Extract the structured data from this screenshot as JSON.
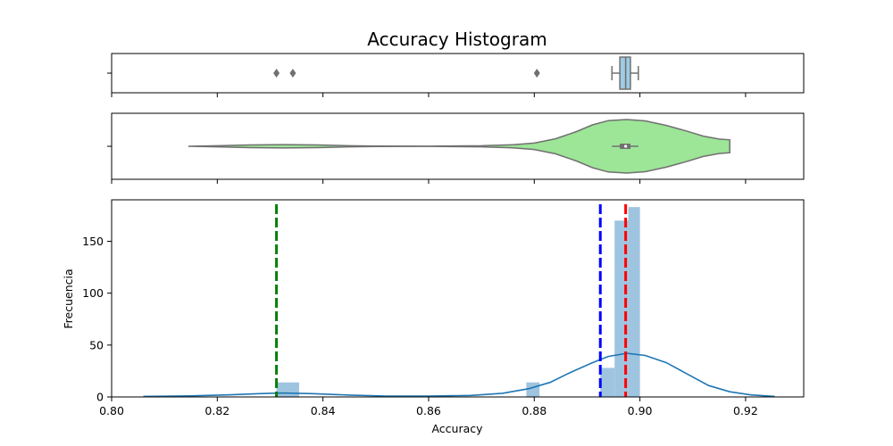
{
  "chart_data": {
    "title": "Accuracy Histogram",
    "colors": {
      "box_fill": "#9fcbe4",
      "violin_fill": "#9de597",
      "hist_bar": "#9fc4e0",
      "kde_line": "#1f77b4",
      "mean_line": "#0000ff",
      "median_line": "#ff0000",
      "mode_line": "#008000",
      "outline": "#707070"
    },
    "x_axis": {
      "label": "Accuracy",
      "ticks": [
        0.8,
        0.82,
        0.84,
        0.86,
        0.88,
        0.9,
        0.92
      ],
      "tick_labels": [
        "0.80",
        "0.82",
        "0.84",
        "0.86",
        "0.88",
        "0.90",
        "0.92"
      ],
      "range": [
        0.8,
        0.931
      ]
    },
    "boxplot": {
      "type": "box",
      "whisker_low": 0.8947,
      "q1": 0.8962,
      "median": 0.8973,
      "q3": 0.8982,
      "whisker_high": 0.8997,
      "outliers": [
        0.8312,
        0.8343,
        0.8805
      ]
    },
    "violin": {
      "type": "violin",
      "range": [
        0.8145,
        0.917
      ],
      "density": [
        [
          0.8145,
          0.0
        ],
        [
          0.82,
          0.02
        ],
        [
          0.826,
          0.05
        ],
        [
          0.8325,
          0.065
        ],
        [
          0.839,
          0.05
        ],
        [
          0.845,
          0.02
        ],
        [
          0.85,
          0.006
        ],
        [
          0.86,
          0.003
        ],
        [
          0.87,
          0.02
        ],
        [
          0.876,
          0.06
        ],
        [
          0.88,
          0.12
        ],
        [
          0.884,
          0.28
        ],
        [
          0.888,
          0.55
        ],
        [
          0.891,
          0.8
        ],
        [
          0.894,
          0.96
        ],
        [
          0.8975,
          1.0
        ],
        [
          0.901,
          0.95
        ],
        [
          0.905,
          0.78
        ],
        [
          0.909,
          0.56
        ],
        [
          0.912,
          0.38
        ],
        [
          0.915,
          0.27
        ],
        [
          0.917,
          0.24
        ]
      ],
      "inner_box": {
        "q1": 0.8962,
        "q3": 0.8982,
        "median": 0.8973,
        "whisker_low": 0.8947,
        "whisker_high": 0.8997
      }
    },
    "histogram": {
      "type": "bar",
      "ylabel": "Frecuencia",
      "y_ticks": [
        0,
        50,
        100,
        150
      ],
      "y_tick_labels": [
        "0",
        "50",
        "100",
        "150"
      ],
      "ylim": [
        0,
        190
      ],
      "bins": [
        {
          "x0": 0.8312,
          "x1": 0.8355,
          "count": 14
        },
        {
          "x0": 0.8785,
          "x1": 0.881,
          "count": 14
        },
        {
          "x0": 0.8925,
          "x1": 0.8952,
          "count": 28
        },
        {
          "x0": 0.8952,
          "x1": 0.8978,
          "count": 170
        },
        {
          "x0": 0.8978,
          "x1": 0.9,
          "count": 183
        }
      ],
      "kde": [
        [
          0.806,
          0.5
        ],
        [
          0.815,
          1.0
        ],
        [
          0.822,
          2.0
        ],
        [
          0.828,
          3.2
        ],
        [
          0.832,
          3.8
        ],
        [
          0.838,
          3.2
        ],
        [
          0.845,
          1.8
        ],
        [
          0.852,
          0.9
        ],
        [
          0.86,
          0.8
        ],
        [
          0.868,
          1.5
        ],
        [
          0.874,
          3.5
        ],
        [
          0.879,
          8.0
        ],
        [
          0.883,
          14.0
        ],
        [
          0.887,
          24.0
        ],
        [
          0.891,
          33.0
        ],
        [
          0.894,
          39.0
        ],
        [
          0.8975,
          42.0
        ],
        [
          0.901,
          40.0
        ],
        [
          0.905,
          33.0
        ],
        [
          0.909,
          22.0
        ],
        [
          0.913,
          11.0
        ],
        [
          0.917,
          5.0
        ],
        [
          0.921,
          2.0
        ],
        [
          0.9255,
          0.5
        ]
      ],
      "vlines": [
        {
          "role": "mode",
          "x": 0.8312
        },
        {
          "role": "mean",
          "x": 0.8925
        },
        {
          "role": "median",
          "x": 0.8973
        }
      ]
    }
  }
}
